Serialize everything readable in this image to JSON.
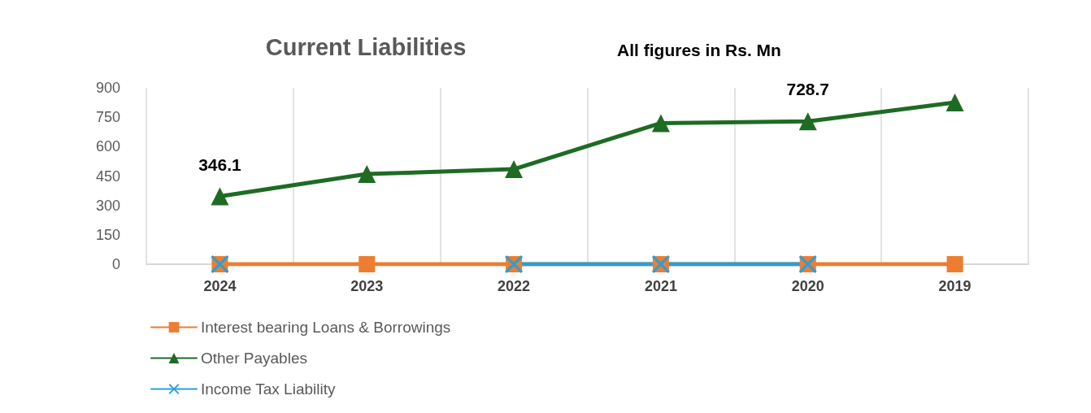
{
  "chart_data": {
    "type": "line",
    "title": "Current Liabilities",
    "subtitle": "All figures in Rs. Mn",
    "categories": [
      "2024",
      "2023",
      "2022",
      "2021",
      "2020",
      "2019"
    ],
    "series": [
      {
        "name": "Interest bearing Loans & Borrowings",
        "color": "#ed7d31",
        "marker": "square",
        "values": [
          0,
          0,
          0,
          0,
          0,
          0
        ]
      },
      {
        "name": "Other Payables",
        "color": "#1e6b24",
        "marker": "triangle",
        "values": [
          346.1,
          460,
          485,
          720,
          728.7,
          825
        ],
        "value_labels": [
          "346.1",
          null,
          null,
          null,
          "728.7",
          null
        ]
      },
      {
        "name": "Income Tax Liability",
        "color": "#2a9fd6",
        "marker": "cross",
        "values": [
          0,
          null,
          0,
          0,
          0,
          null
        ]
      }
    ],
    "ylim": [
      0,
      900
    ],
    "yticks": [
      0,
      150,
      300,
      450,
      600,
      750,
      900
    ],
    "grid": "x",
    "legend": "bottom left",
    "line_style": "solid"
  }
}
